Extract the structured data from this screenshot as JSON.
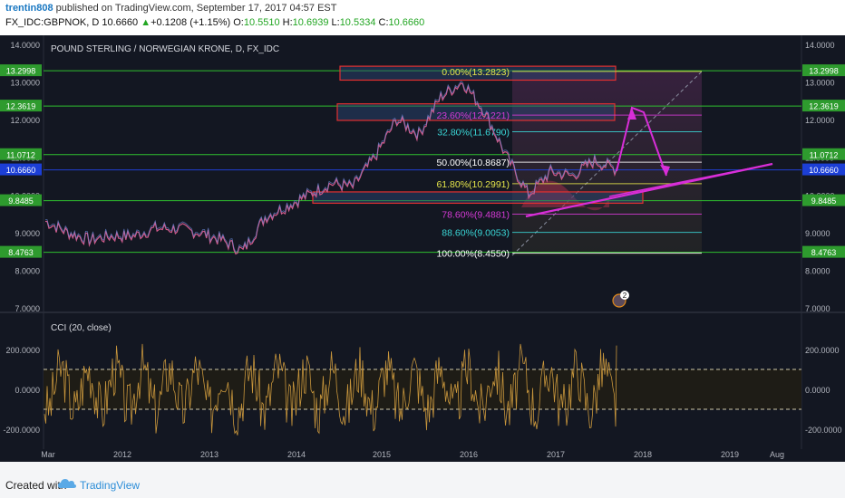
{
  "header": {
    "author": "trentin808",
    "published_text": "published on TradingView.com, September 17, 2017 04:57 EST",
    "symbol": "FX_IDC:GBPNOK, D",
    "last": "10.6660",
    "change": "+0.1208 (+1.15%)",
    "o_label": "O:",
    "o": "10.5510",
    "h_label": "H:",
    "h": "10.6939",
    "l_label": "L:",
    "l": "10.5334",
    "c_label": "C:",
    "c": "10.6660"
  },
  "footer": {
    "created_with": "Created with",
    "brand": "TradingView"
  },
  "chart_data": [
    {
      "type": "line",
      "title": "POUND STERLING / NORWEGIAN KRONE, D, FX_IDC",
      "x": [
        "2011-03",
        "2011-06",
        "2011-09",
        "2011-12",
        "2012-03",
        "2012-06",
        "2012-09",
        "2012-12",
        "2013-03",
        "2013-06",
        "2013-09",
        "2013-12",
        "2014-03",
        "2014-06",
        "2014-09",
        "2014-12",
        "2015-03",
        "2015-06",
        "2015-09",
        "2015-12",
        "2016-03",
        "2016-06",
        "2016-09",
        "2016-12",
        "2017-03",
        "2017-06",
        "2017-09"
      ],
      "y": [
        9.3,
        9.0,
        8.8,
        8.9,
        8.9,
        9.1,
        9.1,
        9.0,
        8.8,
        8.5,
        9.4,
        9.7,
        10.0,
        10.3,
        10.2,
        11.0,
        12.0,
        11.6,
        12.6,
        13.0,
        12.2,
        11.0,
        10.0,
        10.6,
        10.5,
        10.9,
        10.67
      ],
      "ylim": [
        7.0,
        14.0
      ],
      "yticks": [
        "14.0000",
        "13.0000",
        "12.0000",
        "11.0000",
        "10.0000",
        "9.0000",
        "8.0000",
        "7.0000"
      ],
      "xticks": [
        "Mar",
        "2012",
        "2013",
        "2014",
        "2015",
        "2016",
        "2017",
        "2018",
        "2019",
        "Aug"
      ],
      "price_labels": [
        {
          "value": 13.2998,
          "text": "13.2998",
          "color": "#2e9b2e"
        },
        {
          "value": 12.3619,
          "text": "12.3619",
          "color": "#2e9b2e"
        },
        {
          "value": 11.0712,
          "text": "11.0712",
          "color": "#2e9b2e"
        },
        {
          "value": 10.666,
          "text": "10.6660",
          "color": "#1c3fd6"
        },
        {
          "value": 9.8485,
          "text": "9.8485",
          "color": "#2e9b2e"
        },
        {
          "value": 8.4763,
          "text": "8.4763",
          "color": "#2e9b2e"
        }
      ],
      "fib_levels": [
        {
          "label": "0.00%(13.2823)",
          "value": 13.2823,
          "color": "#e5e54a"
        },
        {
          "label": "23.60%(12.1221)",
          "value": 12.1221,
          "color": "#d63ad6"
        },
        {
          "label": "32.80%(11.6790)",
          "value": 11.679,
          "color": "#3ad6d6"
        },
        {
          "label": "50.00%(10.8687)",
          "value": 10.8687,
          "color": "#ffffff"
        },
        {
          "label": "61.80%(10.2991)",
          "value": 10.2991,
          "color": "#e5e54a"
        },
        {
          "label": "78.60%(9.4881)",
          "value": 9.4881,
          "color": "#d63ad6"
        },
        {
          "label": "88.60%(9.0053)",
          "value": 9.0053,
          "color": "#3ad6d6"
        },
        {
          "label": "100.00%(8.4550)",
          "value": 8.455,
          "color": "#ffffff"
        }
      ],
      "marker_badge": "2",
      "colors": {
        "horizontal_lines": "#2fbf2f",
        "last_price": "#1c3fd6",
        "trendline": "#d82ed8",
        "zones": "#3a5a8a"
      }
    },
    {
      "type": "line",
      "title": "CCI (20, close)",
      "ylim": [
        -300,
        300
      ],
      "yticks": [
        "200.0000",
        "0.0000",
        "-200.0000"
      ],
      "bands": [
        100,
        -100
      ],
      "y_summary": {
        "min": -270,
        "max": 290,
        "last": 220
      },
      "colors": {
        "line": "#c8963c",
        "band": "#cfc9a8"
      }
    }
  ]
}
